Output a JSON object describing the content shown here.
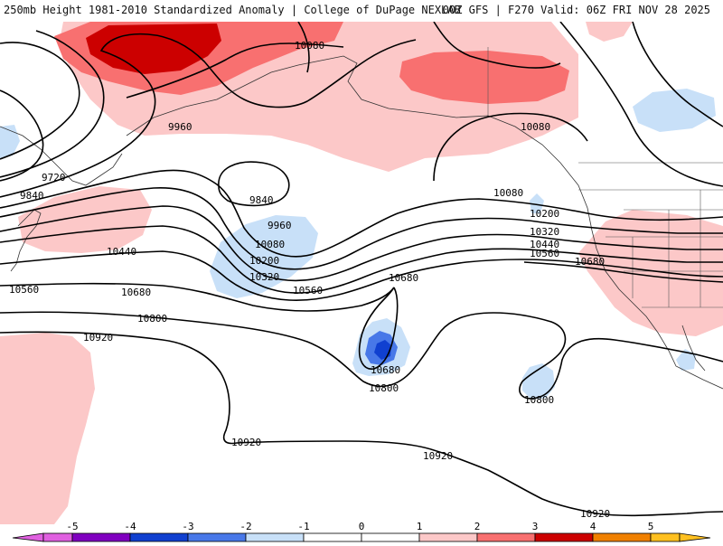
{
  "header": {
    "title_left": "250mb Height 1981-2010 Standardized Anomaly | College of DuPage NEXLAB",
    "title_right": "00Z GFS | F270 Valid: 06Z FRI NOV 28 2025"
  },
  "colors": {
    "neg5": "#e060e0",
    "neg4": "#8000c0",
    "neg3": "#1040d0",
    "neg2": "#4878e8",
    "neg1": "#c8e0f8",
    "pos1": "#fcc8c8",
    "pos2": "#f87070",
    "pos3": "#cc0000",
    "pos4": "#f08000",
    "pos5": "#ffc020"
  },
  "contour_labels": {
    "l1": "10080",
    "l2": "9960",
    "l3": "10080",
    "l4": "9720",
    "l5": "9840",
    "l6": "9840",
    "l7": "9960",
    "l8": "10080",
    "l9": "10200",
    "l10": "10320",
    "l11": "10440",
    "l12": "10560",
    "l13": "10680",
    "l14": "10560",
    "l15": "10680",
    "l16": "10800",
    "l17": "10920",
    "l18": "10080",
    "l19": "10200",
    "l20": "10320",
    "l21": "10440",
    "l22": "10560",
    "l23": "10680",
    "l24": "10680",
    "l25": "10800",
    "l26": "10800",
    "l27": "10920",
    "l28": "10920",
    "l29": "10920"
  },
  "colorbar": {
    "ticks": [
      "-5",
      "-4",
      "-3",
      "-2",
      "-1",
      "0",
      "1",
      "2",
      "3",
      "4",
      "5"
    ]
  }
}
